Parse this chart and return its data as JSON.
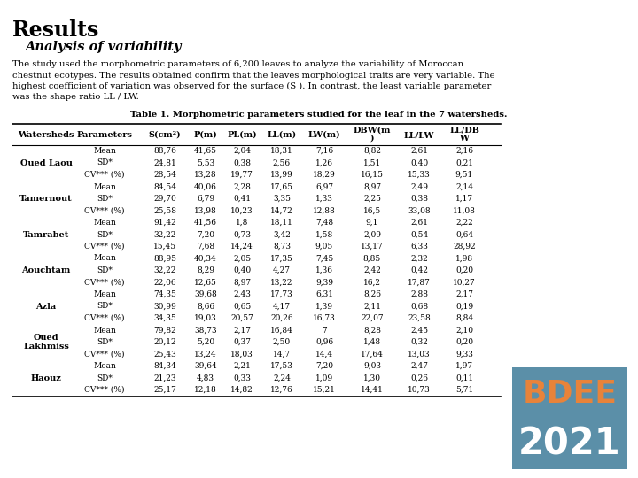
{
  "title": "Results",
  "subtitle": "Analysis of variability",
  "para1": "The study used the morphometric parameters of 6,200 leaves to analyze the variability of Moroccan",
  "para2": "chestnut ecotypes. The results obtained confirm that the leaves morphological traits are very variable. The",
  "para3": "highest coefficient of variation was observed for the surface (S ). In contrast, the least variable parameter",
  "para4": "was the shape ratio LL / LW.",
  "table_title": "Table 1. Morphometric parameters studied for the leaf in the 7 watersheds.",
  "watersheds": [
    "Oued Laou",
    "Tamernout",
    "Tamrabet",
    "Aouchtam",
    "Azla",
    "Oued\nLakhmiss",
    "Haouz"
  ],
  "params": [
    "Mean",
    "SD*",
    "CV*** (%)"
  ],
  "data": [
    [
      [
        "88,76",
        "41,65",
        "2,04",
        "18,31",
        "7,16",
        "8,82",
        "2,61",
        "2,16"
      ],
      [
        "24,81",
        "5,53",
        "0,38",
        "2,56",
        "1,26",
        "1,51",
        "0,40",
        "0,21"
      ],
      [
        "28,54",
        "13,28",
        "19,77",
        "13,99",
        "18,29",
        "16,15",
        "15,33",
        "9,51"
      ]
    ],
    [
      [
        "84,54",
        "40,06",
        "2,28",
        "17,65",
        "6,97",
        "8,97",
        "2,49",
        "2,14"
      ],
      [
        "29,70",
        "6,79",
        "0,41",
        "3,35",
        "1,33",
        "2,25",
        "0,38",
        "1,17"
      ],
      [
        "25,58",
        "13,98",
        "10,23",
        "14,72",
        "12,88",
        "16,5",
        "33,08",
        "11,08"
      ]
    ],
    [
      [
        "91,42",
        "41,56",
        "1,8",
        "18,11",
        "7,48",
        "9,1",
        "2,61",
        "2,22"
      ],
      [
        "32,22",
        "7,20",
        "0,73",
        "3,42",
        "1,58",
        "2,09",
        "0,54",
        "0,64"
      ],
      [
        "15,45",
        "7,68",
        "14,24",
        "8,73",
        "9,05",
        "13,17",
        "6,33",
        "28,92"
      ]
    ],
    [
      [
        "88,95",
        "40,34",
        "2,05",
        "17,35",
        "7,45",
        "8,85",
        "2,32",
        "1,98"
      ],
      [
        "32,22",
        "8,29",
        "0,40",
        "4,27",
        "1,36",
        "2,42",
        "0,42",
        "0,20"
      ],
      [
        "22,06",
        "12,65",
        "8,97",
        "13,22",
        "9,39",
        "16,2",
        "17,87",
        "10,27"
      ]
    ],
    [
      [
        "74,35",
        "39,68",
        "2,43",
        "17,73",
        "6,31",
        "8,26",
        "2,88",
        "2,17"
      ],
      [
        "30,99",
        "8,66",
        "0,65",
        "4,17",
        "1,39",
        "2,11",
        "0,68",
        "0,19"
      ],
      [
        "34,35",
        "19,03",
        "20,57",
        "20,26",
        "16,73",
        "22,07",
        "23,58",
        "8,84"
      ]
    ],
    [
      [
        "79,82",
        "38,73",
        "2,17",
        "16,84",
        "7",
        "8,28",
        "2,45",
        "2,10"
      ],
      [
        "20,12",
        "5,20",
        "0,37",
        "2,50",
        "0,96",
        "1,48",
        "0,32",
        "0,20"
      ],
      [
        "25,43",
        "13,24",
        "18,03",
        "14,7",
        "14,4",
        "17,64",
        "13,03",
        "9,33"
      ]
    ],
    [
      [
        "84,34",
        "39,64",
        "2,21",
        "17,53",
        "7,20",
        "9,03",
        "2,47",
        "1,97"
      ],
      [
        "21,23",
        "4,83",
        "0,33",
        "2,24",
        "1,09",
        "1,30",
        "0,26",
        "0,11"
      ],
      [
        "25,17",
        "12,18",
        "14,82",
        "12,76",
        "15,21",
        "14,41",
        "10,73",
        "5,71"
      ]
    ]
  ],
  "bdee_bg": "#5b8fa8",
  "bdee_text": "#e8833a",
  "bdee_year_text": "#ffffff",
  "bg_color": "#ffffff",
  "fig_width": 7.2,
  "fig_height": 5.4,
  "dpi": 100
}
